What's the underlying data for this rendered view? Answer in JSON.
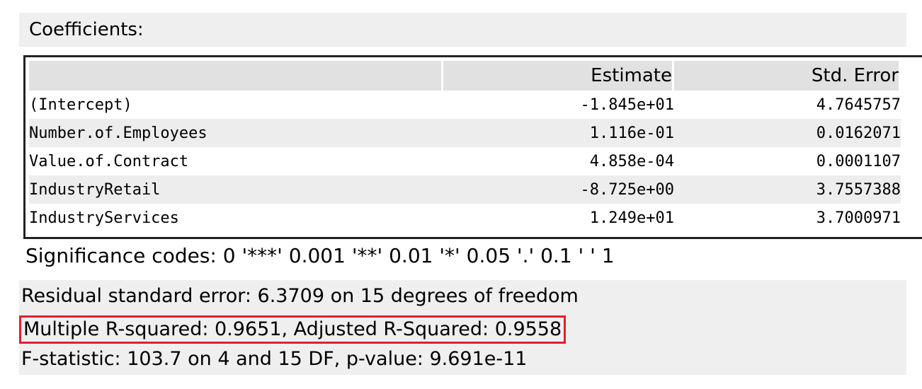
{
  "coefficients_title": "Coefficients:",
  "table": {
    "columns": [
      "",
      "Estimate",
      "Std. Error"
    ],
    "rows": [
      {
        "name": "(Intercept)",
        "estimate": "-1.845e+01",
        "std_error": "4.7645757"
      },
      {
        "name": "Number.of.Employees",
        "estimate": "1.116e-01",
        "std_error": "0.0162071"
      },
      {
        "name": "Value.of.Contract",
        "estimate": "4.858e-04",
        "std_error": "0.0001107"
      },
      {
        "name": "IndustryRetail",
        "estimate": "-8.725e+00",
        "std_error": "3.7557388"
      },
      {
        "name": "IndustryServices",
        "estimate": "1.249e+01",
        "std_error": "3.7000971"
      }
    ]
  },
  "significance_codes": "Significance codes: 0 '***' 0.001 '**' 0.01 '*' 0.05 '.' 0.1 ' ' 1",
  "summary": {
    "residual": "Residual standard error: 6.3709 on 15 degrees of freedom",
    "r_squared": "Multiple R-squared: 0.9651, Adjusted R-Squared: 0.9558",
    "f_statistic": "F-statistic: 103.7 on 4 and 15 DF, p-value: 9.691e-11"
  },
  "highlight_color": "#e0202e"
}
